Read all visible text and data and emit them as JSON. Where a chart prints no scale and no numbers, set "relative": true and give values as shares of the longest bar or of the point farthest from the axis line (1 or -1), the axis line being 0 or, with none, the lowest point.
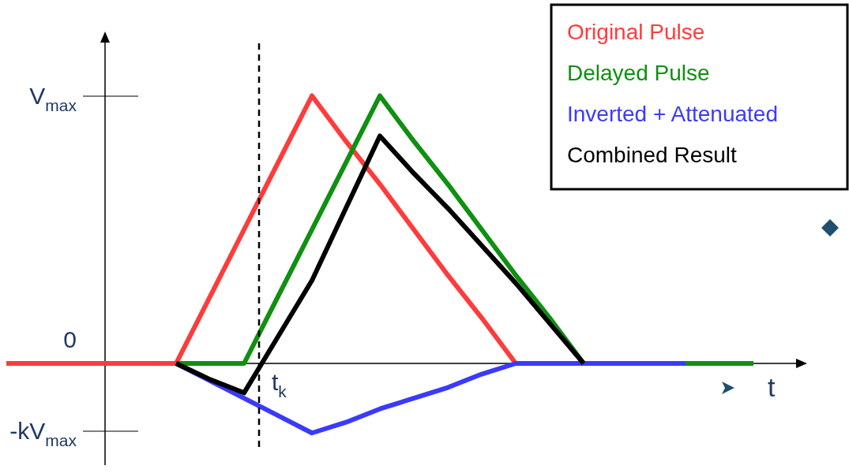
{
  "chart_data": {
    "type": "line",
    "relative": true,
    "xlabel": "t",
    "categories": [
      null,
      null,
      null,
      null,
      null,
      null,
      null,
      null,
      null,
      null,
      null,
      null,
      null,
      null,
      null,
      null,
      null,
      null,
      null,
      null,
      null,
      null,
      null
    ],
    "annotations": [
      "V$_{max}$",
      "0",
      "-kV$_{max}$",
      "t$_{k}$"
    ],
    "series": [
      {
        "name": "Original Pulse",
        "color": "#ff3b3b",
        "values": [
          0,
          0,
          0,
          0,
          0,
          0,
          0.25,
          0.5,
          0.75,
          1,
          0.83,
          0.67,
          0.5,
          0.33,
          0.17,
          0,
          0,
          null,
          null,
          null,
          null,
          null,
          null
        ]
      },
      {
        "name": "Delayed Pulse",
        "color": "#109010",
        "values": [
          null,
          null,
          null,
          null,
          null,
          0,
          0,
          0,
          0.25,
          0.5,
          0.75,
          1,
          0.83,
          0.67,
          0.5,
          0.33,
          0.17,
          0,
          0,
          0,
          0,
          0,
          0
        ]
      },
      {
        "name": "Inverted + Attenuated",
        "color": "#3a3aff",
        "values": [
          null,
          null,
          null,
          null,
          null,
          0,
          -0.065,
          -0.13,
          -0.195,
          -0.26,
          -0.22,
          -0.17,
          -0.13,
          -0.09,
          -0.04,
          0,
          0,
          0,
          0,
          0,
          0,
          null,
          null
        ]
      },
      {
        "name": "Combined Result",
        "color": "#000000",
        "values": [
          null,
          null,
          null,
          null,
          null,
          0,
          -0.06,
          -0.11,
          0.1,
          0.31,
          0.58,
          0.85,
          0.71,
          0.58,
          0.44,
          0.3,
          0.15,
          0,
          null,
          null,
          null,
          null,
          null
        ]
      }
    ]
  }
}
